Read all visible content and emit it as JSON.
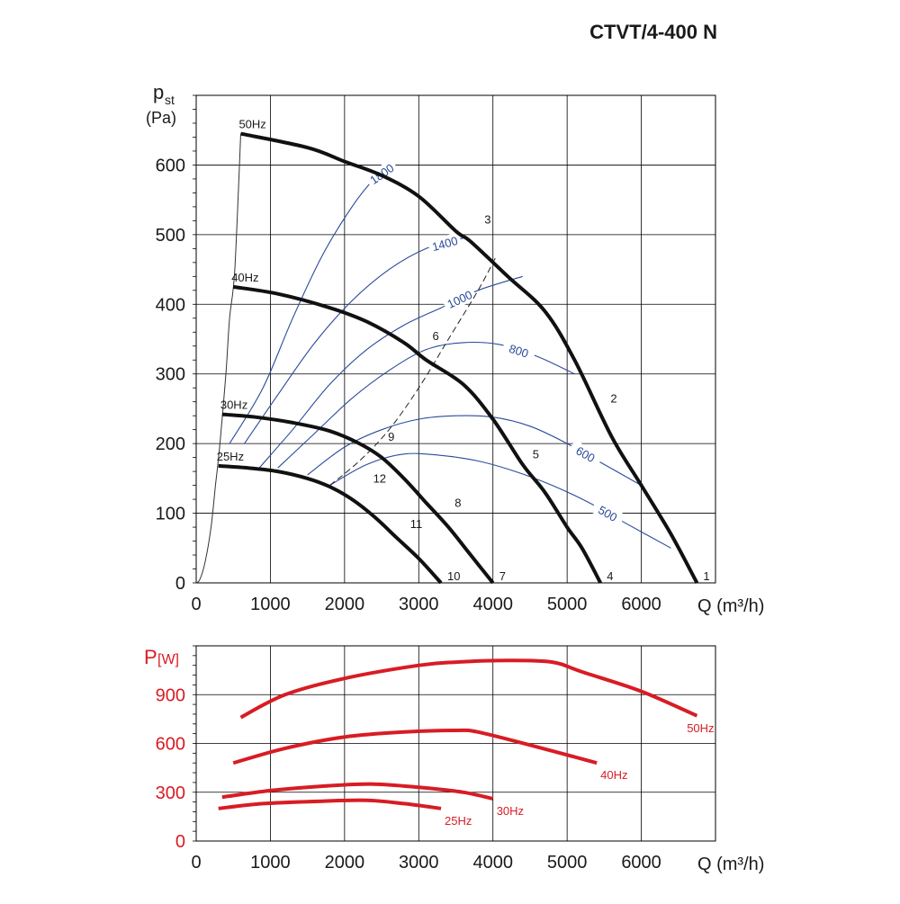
{
  "title": "CTVT/4-400 N",
  "chart_data": [
    {
      "type": "line",
      "name": "pressure",
      "ylabel_main": "p",
      "ylabel_sub": "st",
      "yunit": "(Pa)",
      "xlabel": "Q (m³/h)",
      "xlim": [
        0,
        7000
      ],
      "ylim": [
        0,
        700
      ],
      "xticks": [
        0,
        1000,
        2000,
        3000,
        4000,
        5000,
        6000
      ],
      "yticks": [
        0,
        100,
        200,
        300,
        400,
        500,
        600
      ],
      "grid": true,
      "series": [
        {
          "name": "50Hz",
          "x": [
            600,
            1500,
            2000,
            2500,
            3000,
            3500,
            3700,
            4200,
            4700,
            5100,
            5600,
            6000,
            6400,
            6750
          ],
          "y": [
            645,
            625,
            605,
            585,
            555,
            505,
            490,
            440,
            390,
            320,
            210,
            140,
            70,
            0
          ]
        },
        {
          "name": "40Hz",
          "x": [
            500,
            1100,
            1800,
            2300,
            2800,
            3100,
            3600,
            4000,
            4400,
            4700,
            5000,
            5200,
            5450
          ],
          "y": [
            425,
            415,
            395,
            375,
            345,
            320,
            285,
            235,
            170,
            130,
            80,
            50,
            0
          ]
        },
        {
          "name": "30Hz",
          "x": [
            350,
            800,
            1300,
            1800,
            2200,
            2500,
            2800,
            3100,
            3400,
            3700,
            4000
          ],
          "y": [
            242,
            238,
            230,
            218,
            200,
            180,
            150,
            115,
            80,
            40,
            0
          ]
        },
        {
          "name": "25Hz",
          "x": [
            300,
            700,
            1100,
            1500,
            1800,
            2100,
            2400,
            2700,
            3000,
            3300
          ],
          "y": [
            168,
            165,
            160,
            150,
            138,
            120,
            95,
            65,
            35,
            0
          ]
        }
      ],
      "iso_curves": [
        {
          "label": "1800",
          "x": [
            450,
            900,
            1300,
            1700,
            2100,
            2400,
            2600
          ],
          "y": [
            200,
            280,
            380,
            470,
            540,
            580,
            595
          ]
        },
        {
          "label": "1400",
          "x": [
            650,
            1100,
            1600,
            2100,
            2600,
            3100,
            3600
          ],
          "y": [
            200,
            270,
            345,
            405,
            450,
            480,
            495
          ]
        },
        {
          "label": "1000",
          "x": [
            850,
            1300,
            1800,
            2300,
            2800,
            3300,
            3800,
            4400
          ],
          "y": [
            165,
            220,
            285,
            335,
            370,
            395,
            420,
            440
          ]
        },
        {
          "label": "800",
          "x": [
            1100,
            1600,
            2100,
            2600,
            3100,
            3600,
            4100,
            4600,
            5100
          ],
          "y": [
            165,
            215,
            265,
            305,
            335,
            345,
            342,
            325,
            300
          ]
        },
        {
          "label": "600",
          "x": [
            1500,
            2000,
            2500,
            3000,
            3500,
            4000,
            4500,
            5000,
            5500,
            6000
          ],
          "y": [
            155,
            195,
            220,
            235,
            240,
            238,
            225,
            200,
            170,
            140
          ]
        },
        {
          "label": "500",
          "x": [
            1800,
            2300,
            2800,
            3300,
            3800,
            4300,
            4800,
            5300,
            5800,
            6400
          ],
          "y": [
            140,
            170,
            185,
            183,
            175,
            160,
            140,
            115,
            85,
            50
          ]
        }
      ],
      "system_curve_x": [
        1800,
        2200,
        2600,
        3000,
        3400,
        3800,
        4050
      ],
      "system_curve_y": [
        140,
        175,
        220,
        280,
        350,
        420,
        470
      ],
      "start_curve_x": [
        0,
        50,
        120,
        200,
        260,
        320,
        400,
        450,
        520,
        600
      ],
      "start_curve_y": [
        0,
        5,
        30,
        80,
        140,
        200,
        300,
        380,
        450,
        645
      ],
      "points": [
        {
          "label": "1",
          "x": 6750,
          "y": 0
        },
        {
          "label": "2",
          "x": 5500,
          "y": 255
        },
        {
          "label": "3",
          "x": 3800,
          "y": 512
        },
        {
          "label": "4",
          "x": 5450,
          "y": 0
        },
        {
          "label": "5",
          "x": 4450,
          "y": 175
        },
        {
          "label": "6",
          "x": 3100,
          "y": 345
        },
        {
          "label": "7",
          "x": 4000,
          "y": 0
        },
        {
          "label": "8",
          "x": 3400,
          "y": 105
        },
        {
          "label": "9",
          "x": 2500,
          "y": 200
        },
        {
          "label": "10",
          "x": 3300,
          "y": 0
        },
        {
          "label": "11",
          "x": 2800,
          "y": 75
        },
        {
          "label": "12",
          "x": 2300,
          "y": 140
        }
      ]
    },
    {
      "type": "line",
      "name": "power",
      "ylabel_main": "P",
      "yunit": "[W]",
      "xlabel": "Q (m³/h)",
      "xlim": [
        0,
        7000
      ],
      "ylim": [
        0,
        1200
      ],
      "xticks": [
        0,
        1000,
        2000,
        3000,
        4000,
        5000,
        6000
      ],
      "yticks": [
        0,
        300,
        600,
        900
      ],
      "grid": true,
      "color": "#d81c24",
      "series": [
        {
          "name": "50Hz",
          "x": [
            600,
            1200,
            2000,
            3000,
            3500,
            4200,
            4800,
            5200,
            6000,
            6750
          ],
          "y": [
            760,
            900,
            1000,
            1080,
            1100,
            1110,
            1100,
            1040,
            920,
            770
          ]
        },
        {
          "name": "40Hz",
          "x": [
            500,
            1200,
            2000,
            2800,
            3500,
            3800,
            4500,
            5400
          ],
          "y": [
            480,
            570,
            640,
            670,
            680,
            670,
            590,
            480
          ]
        },
        {
          "name": "30Hz",
          "x": [
            350,
            1000,
            1800,
            2400,
            3000,
            3600,
            4000
          ],
          "y": [
            270,
            310,
            340,
            350,
            330,
            300,
            260
          ]
        },
        {
          "name": "25Hz",
          "x": [
            300,
            900,
            1700,
            2300,
            2800,
            3300
          ],
          "y": [
            200,
            230,
            245,
            250,
            230,
            200
          ]
        }
      ]
    }
  ]
}
